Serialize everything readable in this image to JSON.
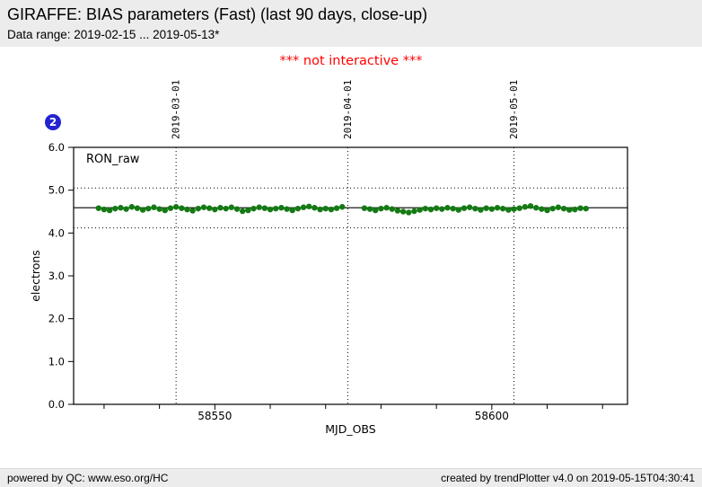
{
  "header": {
    "title": "GIRAFFE: BIAS parameters (Fast) (last 90 days, close-up)",
    "data_range": "Data range: 2019-02-15 ... 2019-05-13*"
  },
  "warning": "*** not interactive ***",
  "badge": {
    "value": "2"
  },
  "footer": {
    "left": "powered by QC: www.eso.org/HC",
    "right": "created by trendPlotter v4.0 on 2019-05-15T04:30:41"
  },
  "colors": {
    "point_green": "#147a14",
    "warning_red": "#ff0000",
    "badge_blue": "#2323d2",
    "header_bg": "#ececec"
  },
  "chart_data": {
    "type": "scatter",
    "title": "RON_raw",
    "xlabel": "MJD_OBS",
    "ylabel": "electrons",
    "xlim": [
      58524.5,
      58624.5
    ],
    "ylim": [
      0.0,
      6.0
    ],
    "grid": false,
    "legend_position": "top-left-inside",
    "x_major_ticks": [
      {
        "value": 58550,
        "label": "58550"
      },
      {
        "value": 58600,
        "label": "58600"
      }
    ],
    "x_minor_ticks": [
      58530,
      58540,
      58560,
      58570,
      58580,
      58590,
      58610,
      58620
    ],
    "y_ticks": [
      {
        "value": 0,
        "label": "0.0"
      },
      {
        "value": 1,
        "label": "1.0"
      },
      {
        "value": 2,
        "label": "2.0"
      },
      {
        "value": 3,
        "label": "3.0"
      },
      {
        "value": 4,
        "label": "4.0"
      },
      {
        "value": 5,
        "label": "5.0"
      },
      {
        "value": 6,
        "label": "6.0"
      }
    ],
    "date_gridlines": [
      {
        "mjd": 58543,
        "label": "2019-03-01"
      },
      {
        "mjd": 58574,
        "label": "2019-04-01"
      },
      {
        "mjd": 58604,
        "label": "2019-05-01"
      }
    ],
    "mean_line": 4.59,
    "threshold_lines": [
      4.12,
      5.05
    ],
    "series": [
      {
        "name": "RON_raw",
        "color": "#147a14",
        "marker": "circle",
        "points": [
          [
            58529,
            4.58
          ],
          [
            58530,
            4.55
          ],
          [
            58531,
            4.53
          ],
          [
            58532,
            4.57
          ],
          [
            58533,
            4.59
          ],
          [
            58534,
            4.56
          ],
          [
            58535,
            4.61
          ],
          [
            58536,
            4.58
          ],
          [
            58537,
            4.54
          ],
          [
            58538,
            4.57
          ],
          [
            58539,
            4.6
          ],
          [
            58540,
            4.56
          ],
          [
            58541,
            4.53
          ],
          [
            58542,
            4.58
          ],
          [
            58543,
            4.61
          ],
          [
            58544,
            4.58
          ],
          [
            58545,
            4.55
          ],
          [
            58546,
            4.52
          ],
          [
            58547,
            4.57
          ],
          [
            58548,
            4.6
          ],
          [
            58549,
            4.58
          ],
          [
            58550,
            4.55
          ],
          [
            58551,
            4.59
          ],
          [
            58552,
            4.57
          ],
          [
            58553,
            4.6
          ],
          [
            58554,
            4.56
          ],
          [
            58555,
            4.51
          ],
          [
            58556,
            4.53
          ],
          [
            58557,
            4.57
          ],
          [
            58558,
            4.6
          ],
          [
            58559,
            4.58
          ],
          [
            58560,
            4.55
          ],
          [
            58561,
            4.57
          ],
          [
            58562,
            4.59
          ],
          [
            58563,
            4.56
          ],
          [
            58564,
            4.53
          ],
          [
            58565,
            4.57
          ],
          [
            58566,
            4.6
          ],
          [
            58567,
            4.62
          ],
          [
            58568,
            4.59
          ],
          [
            58569,
            4.55
          ],
          [
            58570,
            4.57
          ],
          [
            58571,
            4.55
          ],
          [
            58572,
            4.58
          ],
          [
            58573,
            4.61
          ],
          [
            58577,
            4.58
          ],
          [
            58578,
            4.56
          ],
          [
            58579,
            4.53
          ],
          [
            58580,
            4.57
          ],
          [
            58581,
            4.59
          ],
          [
            58582,
            4.56
          ],
          [
            58583,
            4.52
          ],
          [
            58584,
            4.5
          ],
          [
            58585,
            4.48
          ],
          [
            58586,
            4.51
          ],
          [
            58587,
            4.54
          ],
          [
            58588,
            4.57
          ],
          [
            58589,
            4.55
          ],
          [
            58590,
            4.58
          ],
          [
            58591,
            4.56
          ],
          [
            58592,
            4.59
          ],
          [
            58593,
            4.57
          ],
          [
            58594,
            4.54
          ],
          [
            58595,
            4.58
          ],
          [
            58596,
            4.6
          ],
          [
            58597,
            4.57
          ],
          [
            58598,
            4.54
          ],
          [
            58599,
            4.58
          ],
          [
            58600,
            4.56
          ],
          [
            58601,
            4.59
          ],
          [
            58602,
            4.57
          ],
          [
            58603,
            4.54
          ],
          [
            58604,
            4.56
          ],
          [
            58605,
            4.58
          ],
          [
            58606,
            4.61
          ],
          [
            58607,
            4.63
          ],
          [
            58608,
            4.59
          ],
          [
            58609,
            4.56
          ],
          [
            58610,
            4.53
          ],
          [
            58611,
            4.57
          ],
          [
            58612,
            4.6
          ],
          [
            58613,
            4.57
          ],
          [
            58614,
            4.54
          ],
          [
            58615,
            4.55
          ],
          [
            58616,
            4.58
          ],
          [
            58617,
            4.57
          ]
        ]
      }
    ]
  }
}
